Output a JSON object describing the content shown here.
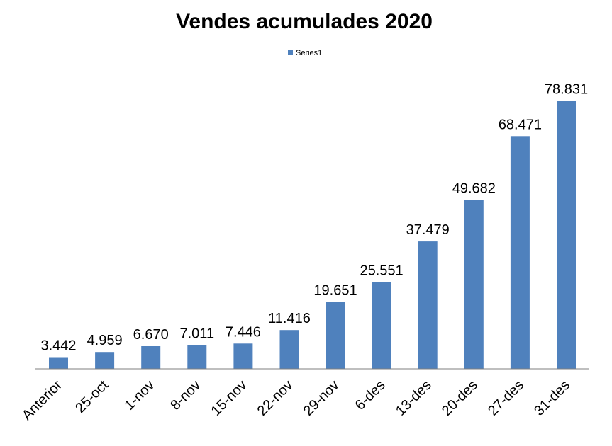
{
  "chart_data": {
    "type": "bar",
    "title": "Vendes acumulades 2020",
    "xlabel": "",
    "ylabel": "",
    "categories": [
      "Anterior",
      "25-oct",
      "1-nov",
      "8-nov",
      "15-nov",
      "22-nov",
      "29-nov",
      "6-des",
      "13-des",
      "20-des",
      "27-des",
      "31-des"
    ],
    "series": [
      {
        "name": "Series1",
        "color": "#4F81BD",
        "values": [
          3442,
          4959,
          6670,
          7011,
          7446,
          11416,
          19651,
          25551,
          37479,
          49682,
          68471,
          78831
        ],
        "labels": [
          "3.442",
          "4.959",
          "6.670",
          "7.011",
          "7.446",
          "11.416",
          "19.651",
          "25.551",
          "37.479",
          "49.682",
          "68.471",
          "78.831"
        ]
      }
    ],
    "ylim": [
      0,
      80000
    ],
    "grid": false,
    "legend": "top-center",
    "axis_color": "#7F7F7F"
  }
}
